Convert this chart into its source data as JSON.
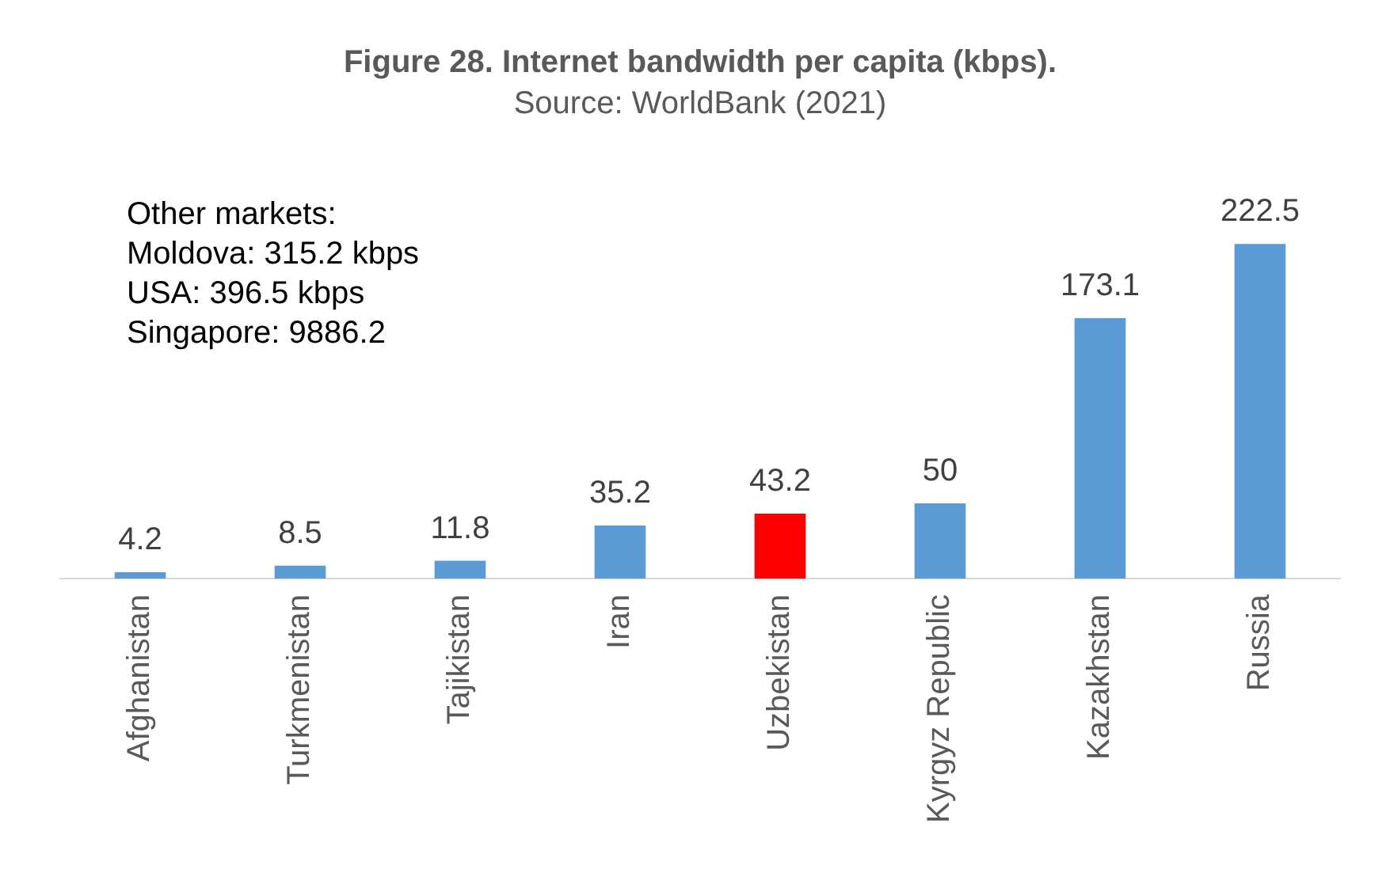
{
  "chart_data": {
    "type": "bar",
    "title": "Figure 28. Internet bandwidth per capita (kbps).",
    "subtitle": "Source: WorldBank (2021)",
    "categories": [
      "Afghanistan",
      "Turkmenistan",
      "Tajikistan",
      "Iran",
      "Uzbekistan",
      "Kyrgyz Republic",
      "Kazakhstan",
      "Russia"
    ],
    "values": [
      4.2,
      8.5,
      11.8,
      35.2,
      43.2,
      50,
      173.1,
      222.5
    ],
    "colors": [
      "#5b9bd5",
      "#5b9bd5",
      "#5b9bd5",
      "#5b9bd5",
      "#ff0000",
      "#5b9bd5",
      "#5b9bd5",
      "#5b9bd5"
    ],
    "data_labels": true,
    "grid": false,
    "legend": false,
    "annotations": [
      "Other markets:",
      "Moldova: 315.2 kbps",
      "USA: 396.5 kbps",
      "Singapore: 9886.2"
    ]
  }
}
